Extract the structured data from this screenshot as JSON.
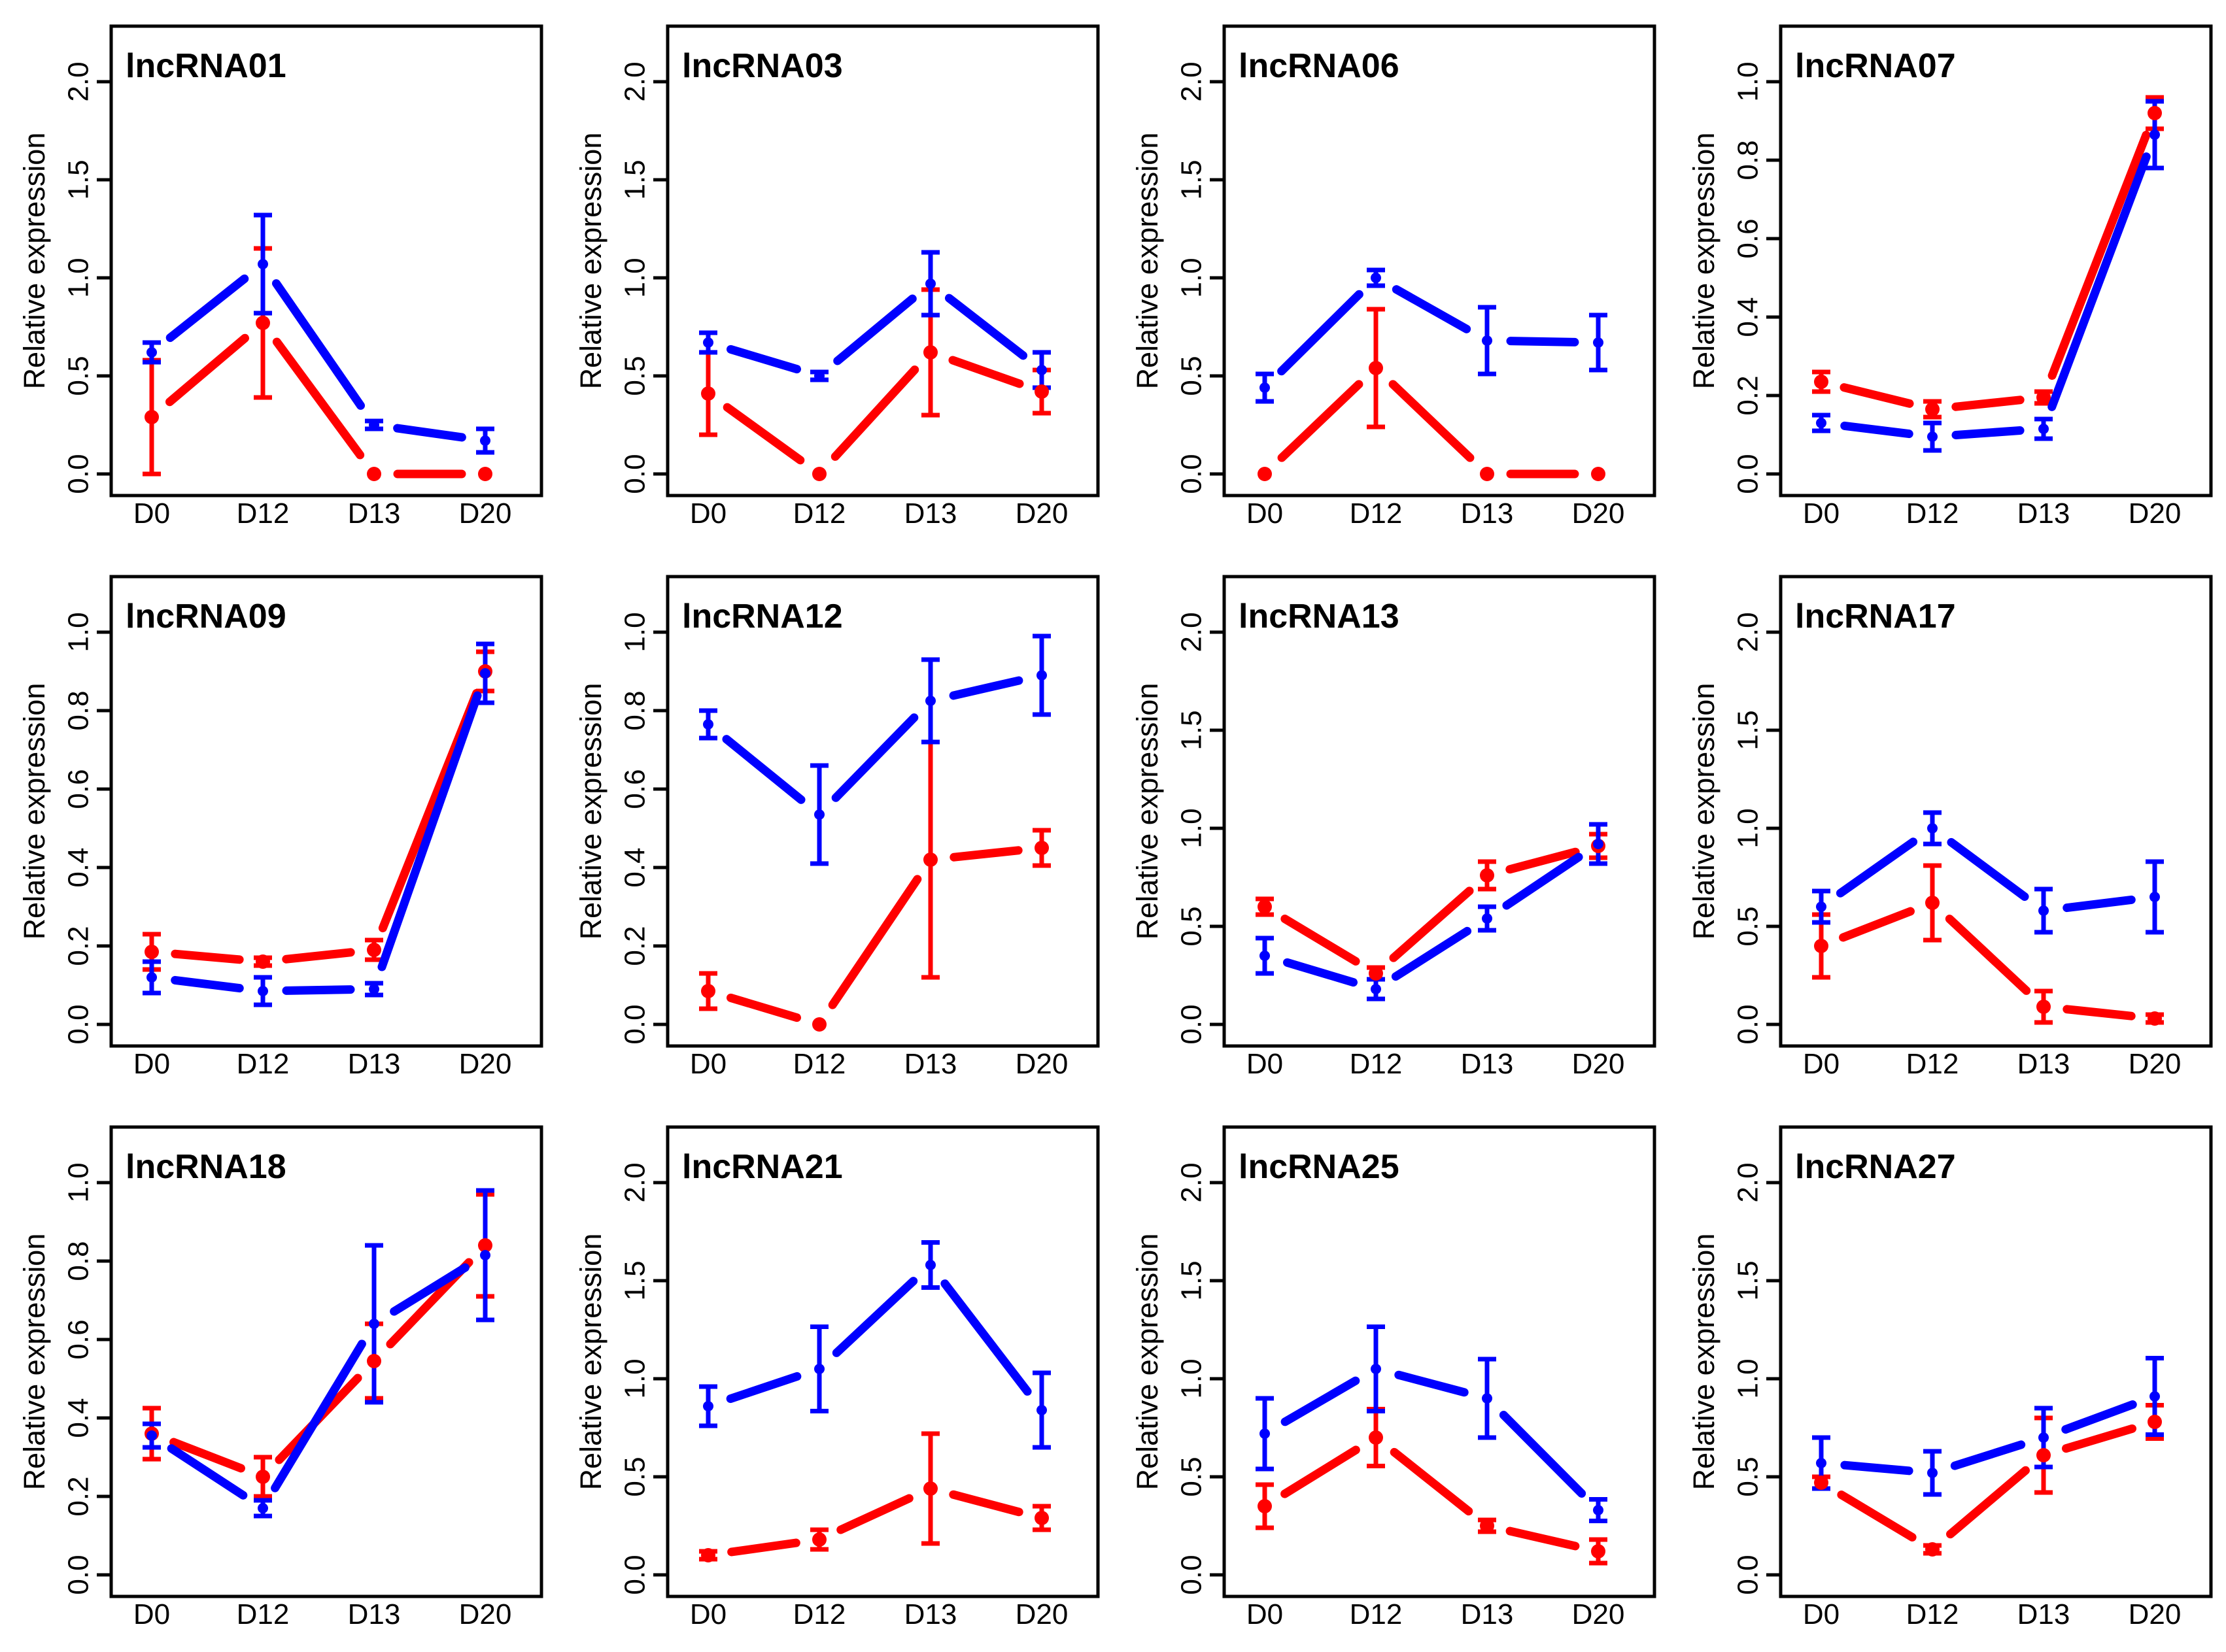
{
  "figure": {
    "ylabel": "Relative expression",
    "categories": [
      "D0",
      "D12",
      "D13",
      "D20"
    ],
    "series_colors": {
      "blue": "#0000FF",
      "red": "#FF0000"
    },
    "axis_color": "#000000",
    "background": "#FFFFFF"
  },
  "chart_data": [
    {
      "type": "line",
      "title": "lncRNA01",
      "xlabel": "",
      "ylabel": "Relative expression",
      "categories": [
        "D0",
        "D12",
        "D13",
        "D20"
      ],
      "ylim": [
        0,
        2.28
      ],
      "grid": false,
      "legend": "none",
      "yticks": [
        0,
        0.5,
        1.0,
        1.5,
        2.0
      ],
      "ytick_labels": [
        "0.0",
        "0.5",
        "1.0",
        "1.5",
        "2.0"
      ],
      "series": [
        {
          "name": "blue",
          "color": "#0000FF",
          "values": [
            0.62,
            1.07,
            0.25,
            0.17
          ],
          "errors": [
            0.05,
            0.25,
            0.02,
            0.06
          ]
        },
        {
          "name": "red",
          "color": "#FF0000",
          "values": [
            0.29,
            0.77,
            0.0,
            0.0
          ],
          "errors": [
            0.29,
            0.38,
            0.0,
            0.0
          ]
        }
      ]
    },
    {
      "type": "line",
      "title": "lncRNA03",
      "xlabel": "",
      "ylabel": "Relative expression",
      "categories": [
        "D0",
        "D12",
        "D13",
        "D20"
      ],
      "ylim": [
        0,
        2.28
      ],
      "grid": false,
      "legend": "none",
      "yticks": [
        0,
        0.5,
        1.0,
        1.5,
        2.0
      ],
      "ytick_labels": [
        "0.0",
        "0.5",
        "1.0",
        "1.5",
        "2.0"
      ],
      "series": [
        {
          "name": "blue",
          "color": "#0000FF",
          "values": [
            0.67,
            0.5,
            0.97,
            0.53
          ],
          "errors": [
            0.05,
            0.02,
            0.16,
            0.09
          ]
        },
        {
          "name": "red",
          "color": "#FF0000",
          "values": [
            0.41,
            0.0,
            0.62,
            0.42
          ],
          "errors": [
            0.21,
            0.0,
            0.32,
            0.11
          ]
        }
      ]
    },
    {
      "type": "line",
      "title": "lncRNA06",
      "xlabel": "",
      "ylabel": "Relative expression",
      "categories": [
        "D0",
        "D12",
        "D13",
        "D20"
      ],
      "ylim": [
        0,
        2.28
      ],
      "grid": false,
      "legend": "none",
      "yticks": [
        0,
        0.5,
        1.0,
        1.5,
        2.0
      ],
      "ytick_labels": [
        "0.0",
        "0.5",
        "1.0",
        "1.5",
        "2.0"
      ],
      "series": [
        {
          "name": "blue",
          "color": "#0000FF",
          "values": [
            0.44,
            1.0,
            0.68,
            0.67
          ],
          "errors": [
            0.07,
            0.04,
            0.17,
            0.14
          ]
        },
        {
          "name": "red",
          "color": "#FF0000",
          "values": [
            0.0,
            0.54,
            0.0,
            0.0
          ],
          "errors": [
            0.0,
            0.3,
            0.0,
            0.0
          ]
        }
      ]
    },
    {
      "type": "line",
      "title": "lncRNA07",
      "xlabel": "",
      "ylabel": "Relative expression",
      "categories": [
        "D0",
        "D12",
        "D13",
        "D20"
      ],
      "ylim": [
        0,
        1.14
      ],
      "grid": false,
      "legend": "none",
      "yticks": [
        0,
        0.2,
        0.4,
        0.6,
        0.8,
        1.0
      ],
      "ytick_labels": [
        "0.0",
        "0.2",
        "0.4",
        "0.6",
        "0.8",
        "1.0"
      ],
      "series": [
        {
          "name": "blue",
          "color": "#0000FF",
          "values": [
            0.13,
            0.095,
            0.115,
            0.865
          ],
          "errors": [
            0.02,
            0.035,
            0.025,
            0.085
          ]
        },
        {
          "name": "red",
          "color": "#FF0000",
          "values": [
            0.235,
            0.165,
            0.195,
            0.92
          ],
          "errors": [
            0.025,
            0.02,
            0.015,
            0.04
          ]
        }
      ]
    },
    {
      "type": "line",
      "title": "lncRNA09",
      "xlabel": "",
      "ylabel": "Relative expression",
      "categories": [
        "D0",
        "D12",
        "D13",
        "D20"
      ],
      "ylim": [
        0,
        1.14
      ],
      "grid": false,
      "legend": "none",
      "yticks": [
        0,
        0.2,
        0.4,
        0.6,
        0.8,
        1.0
      ],
      "ytick_labels": [
        "0.0",
        "0.2",
        "0.4",
        "0.6",
        "0.8",
        "1.0"
      ],
      "series": [
        {
          "name": "blue",
          "color": "#0000FF",
          "values": [
            0.12,
            0.085,
            0.09,
            0.895
          ],
          "errors": [
            0.04,
            0.035,
            0.015,
            0.075
          ]
        },
        {
          "name": "red",
          "color": "#FF0000",
          "values": [
            0.185,
            0.16,
            0.19,
            0.9
          ],
          "errors": [
            0.045,
            0.01,
            0.025,
            0.05
          ]
        }
      ]
    },
    {
      "type": "line",
      "title": "lncRNA12",
      "xlabel": "",
      "ylabel": "Relative expression",
      "categories": [
        "D0",
        "D12",
        "D13",
        "D20"
      ],
      "ylim": [
        0,
        1.14
      ],
      "grid": false,
      "legend": "none",
      "yticks": [
        0,
        0.2,
        0.4,
        0.6,
        0.8,
        1.0
      ],
      "ytick_labels": [
        "0.0",
        "0.2",
        "0.4",
        "0.6",
        "0.8",
        "1.0"
      ],
      "series": [
        {
          "name": "blue",
          "color": "#0000FF",
          "values": [
            0.765,
            0.535,
            0.825,
            0.89
          ],
          "errors": [
            0.035,
            0.125,
            0.105,
            0.1
          ]
        },
        {
          "name": "red",
          "color": "#FF0000",
          "values": [
            0.085,
            0.0,
            0.42,
            0.45
          ],
          "errors": [
            0.045,
            0.0,
            0.3,
            0.045
          ]
        }
      ]
    },
    {
      "type": "line",
      "title": "lncRNA13",
      "xlabel": "",
      "ylabel": "Relative expression",
      "categories": [
        "D0",
        "D12",
        "D13",
        "D20"
      ],
      "ylim": [
        0,
        2.28
      ],
      "grid": false,
      "legend": "none",
      "yticks": [
        0,
        0.5,
        1.0,
        1.5,
        2.0
      ],
      "ytick_labels": [
        "0.0",
        "0.5",
        "1.0",
        "1.5",
        "2.0"
      ],
      "series": [
        {
          "name": "blue",
          "color": "#0000FF",
          "values": [
            0.35,
            0.18,
            0.54,
            0.92
          ],
          "errors": [
            0.09,
            0.05,
            0.06,
            0.1
          ]
        },
        {
          "name": "red",
          "color": "#FF0000",
          "values": [
            0.6,
            0.26,
            0.76,
            0.91
          ],
          "errors": [
            0.04,
            0.03,
            0.07,
            0.06
          ]
        }
      ]
    },
    {
      "type": "line",
      "title": "lncRNA17",
      "xlabel": "",
      "ylabel": "Relative expression",
      "categories": [
        "D0",
        "D12",
        "D13",
        "D20"
      ],
      "ylim": [
        0,
        2.28
      ],
      "grid": false,
      "legend": "none",
      "yticks": [
        0,
        0.5,
        1.0,
        1.5,
        2.0
      ],
      "ytick_labels": [
        "0.0",
        "0.5",
        "1.0",
        "1.5",
        "2.0"
      ],
      "series": [
        {
          "name": "blue",
          "color": "#0000FF",
          "values": [
            0.6,
            1.0,
            0.58,
            0.65
          ],
          "errors": [
            0.08,
            0.08,
            0.11,
            0.18
          ]
        },
        {
          "name": "red",
          "color": "#FF0000",
          "values": [
            0.4,
            0.62,
            0.09,
            0.03
          ],
          "errors": [
            0.16,
            0.19,
            0.08,
            0.02
          ]
        }
      ]
    },
    {
      "type": "line",
      "title": "lncRNA18",
      "xlabel": "",
      "ylabel": "Relative expression",
      "categories": [
        "D0",
        "D12",
        "D13",
        "D20"
      ],
      "ylim": [
        0,
        1.14
      ],
      "grid": false,
      "legend": "none",
      "yticks": [
        0,
        0.2,
        0.4,
        0.6,
        0.8,
        1.0
      ],
      "ytick_labels": [
        "0.0",
        "0.2",
        "0.4",
        "0.6",
        "0.8",
        "1.0"
      ],
      "series": [
        {
          "name": "blue",
          "color": "#0000FF",
          "values": [
            0.355,
            0.17,
            0.64,
            0.815
          ],
          "errors": [
            0.03,
            0.02,
            0.2,
            0.165
          ]
        },
        {
          "name": "red",
          "color": "#FF0000",
          "values": [
            0.36,
            0.25,
            0.545,
            0.84
          ],
          "errors": [
            0.065,
            0.05,
            0.095,
            0.13
          ]
        }
      ]
    },
    {
      "type": "line",
      "title": "lncRNA21",
      "xlabel": "",
      "ylabel": "Relative expression",
      "categories": [
        "D0",
        "D12",
        "D13",
        "D20"
      ],
      "ylim": [
        0,
        2.28
      ],
      "grid": false,
      "legend": "none",
      "yticks": [
        0,
        0.5,
        1.0,
        1.5,
        2.0
      ],
      "ytick_labels": [
        "0.0",
        "0.5",
        "1.0",
        "1.5",
        "2.0"
      ],
      "series": [
        {
          "name": "blue",
          "color": "#0000FF",
          "values": [
            0.86,
            1.05,
            1.58,
            0.84
          ],
          "errors": [
            0.1,
            0.215,
            0.115,
            0.19
          ]
        },
        {
          "name": "red",
          "color": "#FF0000",
          "values": [
            0.1,
            0.18,
            0.44,
            0.29
          ],
          "errors": [
            0.02,
            0.05,
            0.28,
            0.06
          ]
        }
      ]
    },
    {
      "type": "line",
      "title": "lncRNA25",
      "xlabel": "",
      "ylabel": "Relative expression",
      "categories": [
        "D0",
        "D12",
        "D13",
        "D20"
      ],
      "ylim": [
        0,
        2.28
      ],
      "grid": false,
      "legend": "none",
      "yticks": [
        0,
        0.5,
        1.0,
        1.5,
        2.0
      ],
      "ytick_labels": [
        "0.0",
        "0.5",
        "1.0",
        "1.5",
        "2.0"
      ],
      "series": [
        {
          "name": "blue",
          "color": "#0000FF",
          "values": [
            0.72,
            1.05,
            0.9,
            0.33
          ],
          "errors": [
            0.18,
            0.215,
            0.2,
            0.055
          ]
        },
        {
          "name": "red",
          "color": "#FF0000",
          "values": [
            0.35,
            0.7,
            0.25,
            0.12
          ],
          "errors": [
            0.11,
            0.145,
            0.03,
            0.06
          ]
        }
      ]
    },
    {
      "type": "line",
      "title": "lncRNA27",
      "xlabel": "",
      "ylabel": "Relative expression",
      "categories": [
        "D0",
        "D12",
        "D13",
        "D20"
      ],
      "ylim": [
        0,
        2.28
      ],
      "grid": false,
      "legend": "none",
      "yticks": [
        0,
        0.5,
        1.0,
        1.5,
        2.0
      ],
      "ytick_labels": [
        "0.0",
        "0.5",
        "1.0",
        "1.5",
        "2.0"
      ],
      "series": [
        {
          "name": "blue",
          "color": "#0000FF",
          "values": [
            0.57,
            0.52,
            0.7,
            0.91
          ],
          "errors": [
            0.13,
            0.11,
            0.15,
            0.195
          ]
        },
        {
          "name": "red",
          "color": "#FF0000",
          "values": [
            0.47,
            0.13,
            0.61,
            0.78
          ],
          "errors": [
            0.03,
            0.02,
            0.19,
            0.085
          ]
        }
      ]
    }
  ]
}
